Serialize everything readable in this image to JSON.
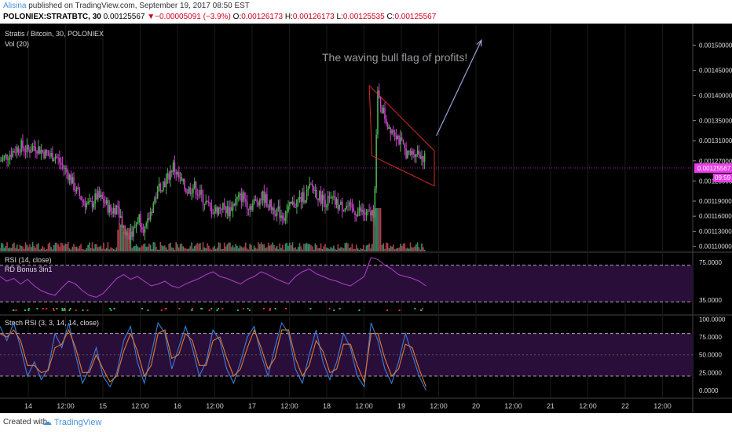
{
  "header": {
    "author": "Alisina",
    "published": " published on TradingView.com, September 19, 2017 08:50 EST",
    "symbol": "POLONIEX:STRATBTC, 30",
    "last": "0.00125567",
    "change_arrow": "▼",
    "change": "−0.00005091 (−3.9%)",
    "o_label": "O:",
    "o": "0.00126173",
    "h_label": "H:",
    "h": "0.00126173",
    "l_label": "L:",
    "l": "0.00125535",
    "c_label": "C:",
    "c": "0.00125567"
  },
  "footer": {
    "created_with": "Created with",
    "brand": "TradingView",
    "brand_icon": "cloud-logo-icon"
  },
  "colors": {
    "up": "#4caf50",
    "down": "#c940c9",
    "vol_up": "#3fa27b",
    "vol_down": "#c94a55",
    "flag": "#e02828",
    "arrow": "#9aa0d8",
    "rsi_band": "#2a0e3a",
    "stoch_band": "#2a0e3a",
    "last_price_bg": "#e83ee8",
    "stoch_k": "#3b7dd8",
    "stoch_d": "#e07b2f"
  },
  "chart_data": [
    {
      "type": "candlestick",
      "title": "Stratis / Bitcoin, 30, POLONIEX",
      "volume_label": "Vol (20)",
      "annotation": "The waving bull flag of profits!",
      "last_price_label": "0.00125567",
      "countdown_label": "09:59",
      "ylim": [
        0.00109,
        0.00154
      ],
      "y_ticks": [
        "0.00150000",
        "0.00145000",
        "0.00140000",
        "0.00135000",
        "0.00131000",
        "0.00127000",
        "0.00123000",
        "0.00119000",
        "0.00116000",
        "0.00113000",
        "0.00110000"
      ],
      "y_tick_values": [
        0.0015,
        0.00145,
        0.0014,
        0.00135,
        0.00131,
        0.00127,
        0.00123,
        0.00119,
        0.00116,
        0.00113,
        0.0011
      ],
      "x_ticks": [
        "14",
        "12:00",
        "15",
        "12:00",
        "16",
        "12:00",
        "17",
        "12:00",
        "18",
        "12:00",
        "19",
        "12:00",
        "20",
        "12:00",
        "21",
        "12:00",
        "22",
        "12:00"
      ],
      "close_path": [
        [
          0.0,
          0.00127
        ],
        [
          0.01,
          0.00128
        ],
        [
          0.02,
          0.00129
        ],
        [
          0.03,
          0.0013
        ],
        [
          0.04,
          0.00129
        ],
        [
          0.05,
          0.0013
        ],
        [
          0.06,
          0.00129
        ],
        [
          0.07,
          0.00128
        ],
        [
          0.08,
          0.00128
        ],
        [
          0.09,
          0.00126
        ],
        [
          0.1,
          0.00124
        ],
        [
          0.11,
          0.00121
        ],
        [
          0.12,
          0.00119
        ],
        [
          0.13,
          0.00118
        ],
        [
          0.14,
          0.0012
        ],
        [
          0.15,
          0.00119
        ],
        [
          0.16,
          0.00117
        ],
        [
          0.17,
          0.00118
        ],
        [
          0.18,
          0.00113
        ],
        [
          0.19,
          0.00112
        ],
        [
          0.2,
          0.00116
        ],
        [
          0.21,
          0.00113
        ],
        [
          0.22,
          0.00118
        ],
        [
          0.23,
          0.00122
        ],
        [
          0.24,
          0.00123
        ],
        [
          0.25,
          0.00126
        ],
        [
          0.26,
          0.00123
        ],
        [
          0.27,
          0.00121
        ],
        [
          0.28,
          0.00122
        ],
        [
          0.29,
          0.0012
        ],
        [
          0.3,
          0.00118
        ],
        [
          0.31,
          0.00117
        ],
        [
          0.32,
          0.00118
        ],
        [
          0.33,
          0.00117
        ],
        [
          0.34,
          0.00119
        ],
        [
          0.35,
          0.0012
        ],
        [
          0.36,
          0.00118
        ],
        [
          0.37,
          0.00119
        ],
        [
          0.38,
          0.0012
        ],
        [
          0.39,
          0.00118
        ],
        [
          0.4,
          0.00117
        ],
        [
          0.41,
          0.00116
        ],
        [
          0.42,
          0.00118
        ],
        [
          0.43,
          0.00119
        ],
        [
          0.44,
          0.0012
        ],
        [
          0.45,
          0.00122
        ],
        [
          0.46,
          0.0012
        ],
        [
          0.47,
          0.00119
        ],
        [
          0.48,
          0.00119
        ],
        [
          0.49,
          0.00118
        ],
        [
          0.5,
          0.00118
        ],
        [
          0.51,
          0.00117
        ],
        [
          0.52,
          0.00117
        ],
        [
          0.53,
          0.00116
        ],
        [
          0.54,
          0.00117
        ],
        [
          0.545,
          0.0014
        ],
        [
          0.55,
          0.00138
        ],
        [
          0.56,
          0.00134
        ],
        [
          0.57,
          0.00133
        ],
        [
          0.58,
          0.0013
        ],
        [
          0.59,
          0.00128
        ],
        [
          0.6,
          0.00129
        ],
        [
          0.61,
          0.00128
        ],
        [
          0.615,
          0.00127
        ]
      ],
      "flag_lines": [
        {
          "from": [
            0.533,
            0.00142
          ],
          "to": [
            0.627,
            0.00129
          ]
        },
        {
          "from": [
            0.533,
            0.00142
          ],
          "to": [
            0.537,
            0.00128
          ]
        },
        {
          "from": [
            0.537,
            0.00128
          ],
          "to": [
            0.627,
            0.00122
          ]
        },
        {
          "from": [
            0.627,
            0.00129
          ],
          "to": [
            0.627,
            0.00122
          ]
        }
      ],
      "arrow": {
        "from": [
          0.63,
          0.00132
        ],
        "to": [
          0.695,
          0.00151
        ]
      }
    },
    {
      "type": "line",
      "title": "RSI (14, close)",
      "subtitle": "RD Bonus 3in1",
      "ylim": [
        20,
        85
      ],
      "y_ticks": [
        "75.0000",
        "35.0000"
      ],
      "y_tick_values": [
        75,
        35
      ],
      "band": [
        33,
        72
      ],
      "series": [
        {
          "values": [
            60,
            55,
            58,
            52,
            57,
            50,
            45,
            42,
            40,
            48,
            55,
            52,
            45,
            40,
            38,
            42,
            50,
            58,
            62,
            57,
            60,
            55,
            50,
            52,
            55,
            50,
            48,
            52,
            55,
            58,
            62,
            65,
            60,
            58,
            55,
            52,
            57,
            60,
            65,
            62,
            58,
            55,
            52,
            60,
            65,
            68,
            63,
            60,
            57,
            55,
            52,
            50,
            55,
            60,
            80,
            78,
            72,
            68,
            62,
            60,
            58,
            55,
            50
          ]
        }
      ]
    },
    {
      "type": "line",
      "title": "Stoch RSI (3, 3, 14, 14, close)",
      "ylim": [
        -10,
        105
      ],
      "y_ticks": [
        "100.0000",
        "75.0000",
        "50.0000",
        "25.0000",
        "0.0000"
      ],
      "y_tick_values": [
        100,
        75,
        50,
        25,
        0
      ],
      "band": [
        20,
        80
      ],
      "series": [
        {
          "values": [
            90,
            70,
            95,
            60,
            20,
            40,
            15,
            30,
            80,
            60,
            95,
            50,
            10,
            30,
            60,
            20,
            5,
            25,
            70,
            90,
            40,
            10,
            50,
            95,
            80,
            30,
            60,
            90,
            60,
            20,
            40,
            85,
            70,
            30,
            10,
            40,
            75,
            90,
            50,
            20,
            60,
            95,
            80,
            30,
            10,
            50,
            85,
            40,
            15,
            40,
            80,
            60,
            20,
            5,
            95,
            70,
            30,
            10,
            40,
            80,
            50,
            20,
            0
          ]
        },
        {
          "values": [
            80,
            75,
            85,
            70,
            35,
            35,
            25,
            28,
            60,
            65,
            85,
            60,
            25,
            25,
            50,
            30,
            12,
            20,
            55,
            80,
            55,
            20,
            35,
            80,
            85,
            45,
            50,
            80,
            70,
            35,
            35,
            70,
            75,
            45,
            20,
            30,
            60,
            85,
            60,
            30,
            45,
            85,
            85,
            45,
            20,
            35,
            70,
            55,
            25,
            30,
            65,
            65,
            35,
            12,
            80,
            80,
            45,
            20,
            30,
            65,
            60,
            30,
            5
          ]
        }
      ]
    }
  ]
}
